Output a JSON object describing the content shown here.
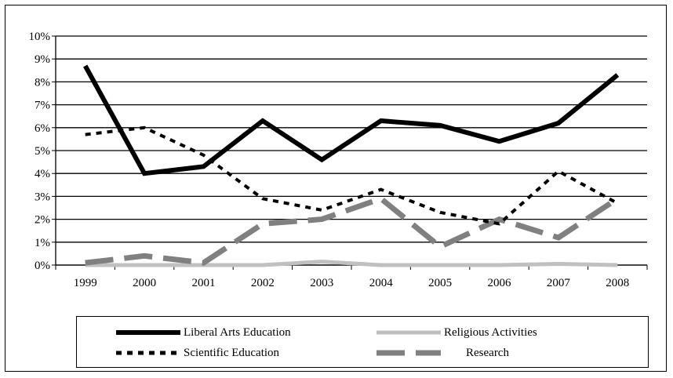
{
  "chart_data": {
    "type": "line",
    "title": "",
    "xlabel": "",
    "ylabel": "",
    "x": [
      "1999",
      "2000",
      "2001",
      "2002",
      "2003",
      "2004",
      "2005",
      "2006",
      "2007",
      "2008"
    ],
    "ylim": [
      0,
      10
    ],
    "yticks": [
      "0%",
      "1%",
      "2%",
      "3%",
      "4%",
      "5%",
      "6%",
      "7%",
      "8%",
      "9%",
      "10%"
    ],
    "grid": "horizontal",
    "legend_position": "bottom",
    "series": [
      {
        "name": "Liberal Arts Education",
        "values": [
          8.7,
          4.0,
          4.3,
          6.3,
          4.6,
          6.3,
          6.1,
          5.4,
          6.2,
          8.3
        ],
        "color": "#000000",
        "style": "solid-thick"
      },
      {
        "name": "Religious Activities",
        "values": [
          0.0,
          0.0,
          0.0,
          0.0,
          0.15,
          0.0,
          0.0,
          0.0,
          0.05,
          0.0
        ],
        "color": "#c0c0c0",
        "style": "solid"
      },
      {
        "name": "Scientific Education",
        "values": [
          5.7,
          6.0,
          4.8,
          2.9,
          2.4,
          3.3,
          2.3,
          1.8,
          4.1,
          2.7
        ],
        "color": "#000000",
        "style": "dotted"
      },
      {
        "name": "Research",
        "values": [
          0.1,
          0.4,
          0.1,
          1.8,
          2.0,
          2.9,
          0.8,
          2.0,
          1.2,
          2.9
        ],
        "color": "#808080",
        "style": "dashed"
      }
    ]
  }
}
